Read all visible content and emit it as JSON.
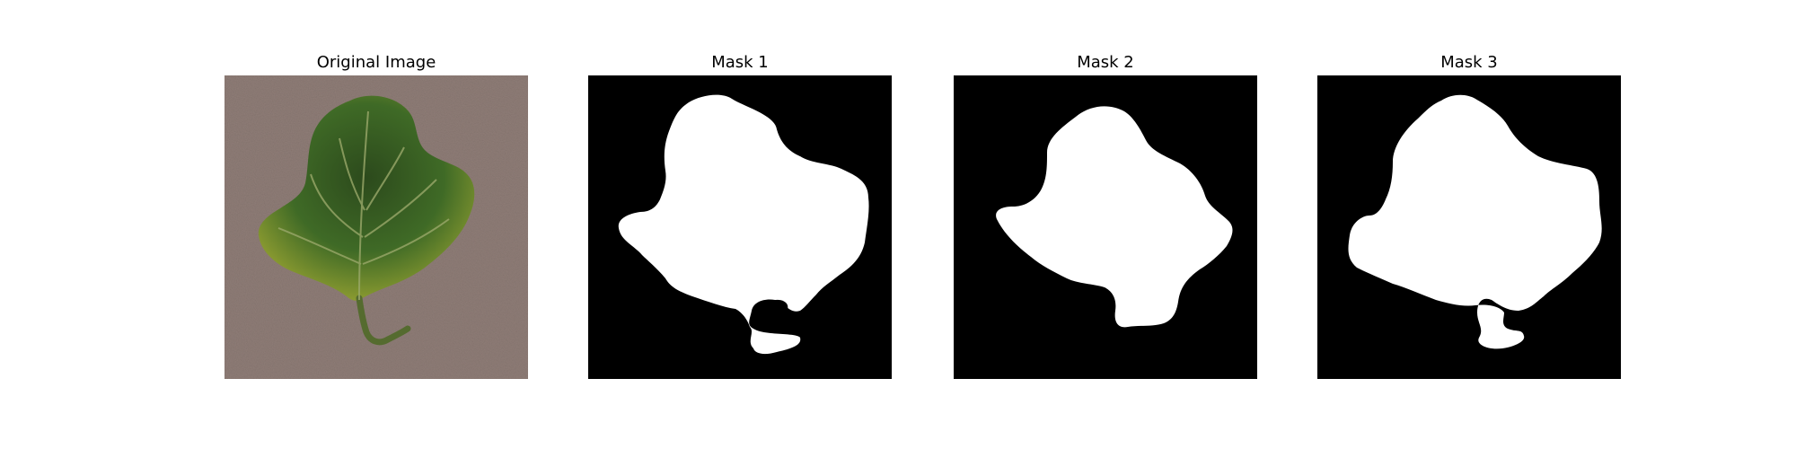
{
  "figure": {
    "panels": [
      {
        "title": "Original Image",
        "content": "photo of a green leaf on a brown textured surface"
      },
      {
        "title": "Mask 1",
        "content": "binary segmentation mask, white leaf on black background"
      },
      {
        "title": "Mask 2",
        "content": "binary segmentation mask, white leaf on black background"
      },
      {
        "title": "Mask 3",
        "content": "binary segmentation mask, white leaf on black background"
      }
    ]
  },
  "colors": {
    "background": "#ffffff",
    "mask_background": "#000000",
    "mask_foreground": "#ffffff",
    "surface": "#8c7b75",
    "leaf_dark": "#2f4f1f",
    "leaf_light": "#6f8f2f"
  }
}
